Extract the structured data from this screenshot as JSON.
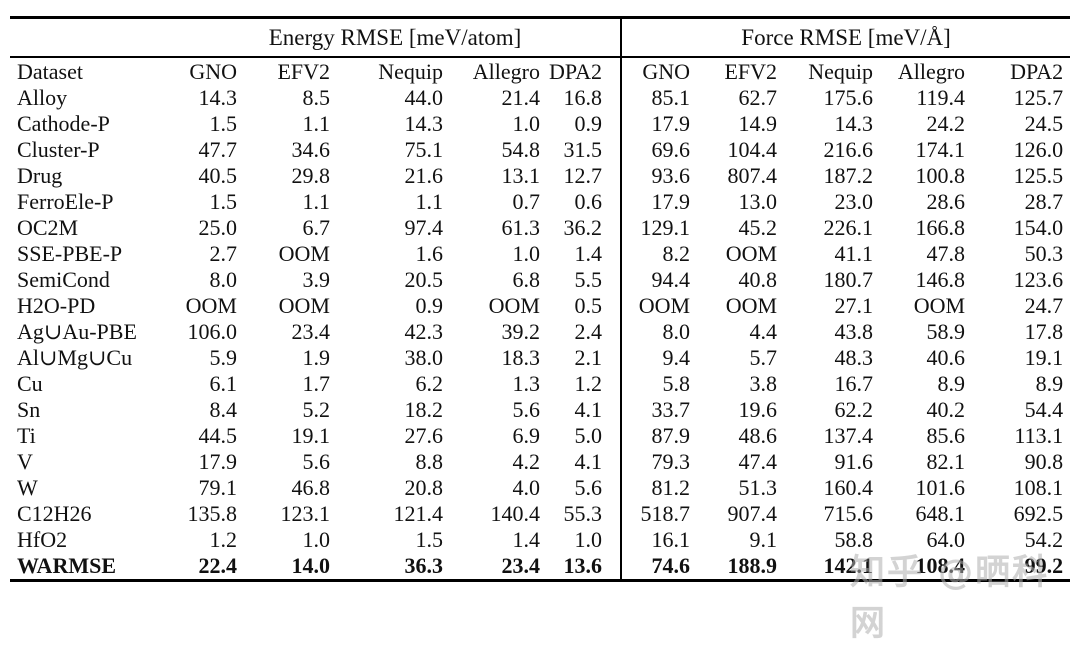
{
  "table": {
    "group_headers": [
      {
        "label": "Energy RMSE [meV/atom]"
      },
      {
        "label": "Force RMSE [meV/Å]"
      }
    ],
    "dataset_header": "Dataset",
    "model_headers": [
      "GNO",
      "EFV2",
      "Nequip",
      "Allegro",
      "DPA2"
    ],
    "rows": [
      {
        "dataset": "Alloy",
        "energy": [
          "14.3",
          "8.5",
          "44.0",
          "21.4",
          "16.8"
        ],
        "force": [
          "85.1",
          "62.7",
          "175.6",
          "119.4",
          "125.7"
        ]
      },
      {
        "dataset": "Cathode-P",
        "energy": [
          "1.5",
          "1.1",
          "14.3",
          "1.0",
          "0.9"
        ],
        "force": [
          "17.9",
          "14.9",
          "14.3",
          "24.2",
          "24.5"
        ]
      },
      {
        "dataset": "Cluster-P",
        "energy": [
          "47.7",
          "34.6",
          "75.1",
          "54.8",
          "31.5"
        ],
        "force": [
          "69.6",
          "104.4",
          "216.6",
          "174.1",
          "126.0"
        ]
      },
      {
        "dataset": "Drug",
        "energy": [
          "40.5",
          "29.8",
          "21.6",
          "13.1",
          "12.7"
        ],
        "force": [
          "93.6",
          "807.4",
          "187.2",
          "100.8",
          "125.5"
        ]
      },
      {
        "dataset": "FerroEle-P",
        "energy": [
          "1.5",
          "1.1",
          "1.1",
          "0.7",
          "0.6"
        ],
        "force": [
          "17.9",
          "13.0",
          "23.0",
          "28.6",
          "28.7"
        ]
      },
      {
        "dataset": "OC2M",
        "energy": [
          "25.0",
          "6.7",
          "97.4",
          "61.3",
          "36.2"
        ],
        "force": [
          "129.1",
          "45.2",
          "226.1",
          "166.8",
          "154.0"
        ]
      },
      {
        "dataset": "SSE-PBE-P",
        "energy": [
          "2.7",
          "OOM",
          "1.6",
          "1.0",
          "1.4"
        ],
        "force": [
          "8.2",
          "OOM",
          "41.1",
          "47.8",
          "50.3"
        ]
      },
      {
        "dataset": "SemiCond",
        "energy": [
          "8.0",
          "3.9",
          "20.5",
          "6.8",
          "5.5"
        ],
        "force": [
          "94.4",
          "40.8",
          "180.7",
          "146.8",
          "123.6"
        ]
      },
      {
        "dataset": "H2O-PD",
        "energy": [
          "OOM",
          "OOM",
          "0.9",
          "OOM",
          "0.5"
        ],
        "force": [
          "OOM",
          "OOM",
          "27.1",
          "OOM",
          "24.7"
        ]
      },
      {
        "dataset": "Ag∪Au-PBE",
        "energy": [
          "106.0",
          "23.4",
          "42.3",
          "39.2",
          "2.4"
        ],
        "force": [
          "8.0",
          "4.4",
          "43.8",
          "58.9",
          "17.8"
        ]
      },
      {
        "dataset": "Al∪Mg∪Cu",
        "energy": [
          "5.9",
          "1.9",
          "38.0",
          "18.3",
          "2.1"
        ],
        "force": [
          "9.4",
          "5.7",
          "48.3",
          "40.6",
          "19.1"
        ]
      },
      {
        "dataset": "Cu",
        "energy": [
          "6.1",
          "1.7",
          "6.2",
          "1.3",
          "1.2"
        ],
        "force": [
          "5.8",
          "3.8",
          "16.7",
          "8.9",
          "8.9"
        ]
      },
      {
        "dataset": "Sn",
        "energy": [
          "8.4",
          "5.2",
          "18.2",
          "5.6",
          "4.1"
        ],
        "force": [
          "33.7",
          "19.6",
          "62.2",
          "40.2",
          "54.4"
        ]
      },
      {
        "dataset": "Ti",
        "energy": [
          "44.5",
          "19.1",
          "27.6",
          "6.9",
          "5.0"
        ],
        "force": [
          "87.9",
          "48.6",
          "137.4",
          "85.6",
          "113.1"
        ]
      },
      {
        "dataset": "V",
        "energy": [
          "17.9",
          "5.6",
          "8.8",
          "4.2",
          "4.1"
        ],
        "force": [
          "79.3",
          "47.4",
          "91.6",
          "82.1",
          "90.8"
        ]
      },
      {
        "dataset": "W",
        "energy": [
          "79.1",
          "46.8",
          "20.8",
          "4.0",
          "5.6"
        ],
        "force": [
          "81.2",
          "51.3",
          "160.4",
          "101.6",
          "108.1"
        ]
      },
      {
        "dataset": "C12H26",
        "energy": [
          "135.8",
          "123.1",
          "121.4",
          "140.4",
          "55.3"
        ],
        "force": [
          "518.7",
          "907.4",
          "715.6",
          "648.1",
          "692.5"
        ]
      },
      {
        "dataset": "HfO2",
        "energy": [
          "1.2",
          "1.0",
          "1.5",
          "1.4",
          "1.0"
        ],
        "force": [
          "16.1",
          "9.1",
          "58.8",
          "64.0",
          "54.2"
        ]
      },
      {
        "dataset": "WARMSE",
        "bold": true,
        "energy": [
          "22.4",
          "14.0",
          "36.3",
          "23.4",
          "13.6"
        ],
        "force": [
          "74.6",
          "188.9",
          "142.1",
          "108.4",
          "99.2"
        ]
      }
    ]
  },
  "watermark": {
    "text": "知乎 @晒科网",
    "color": "#b0b0b0"
  },
  "colors": {
    "text": "#111111",
    "background": "#ffffff",
    "rule": "#000000"
  }
}
